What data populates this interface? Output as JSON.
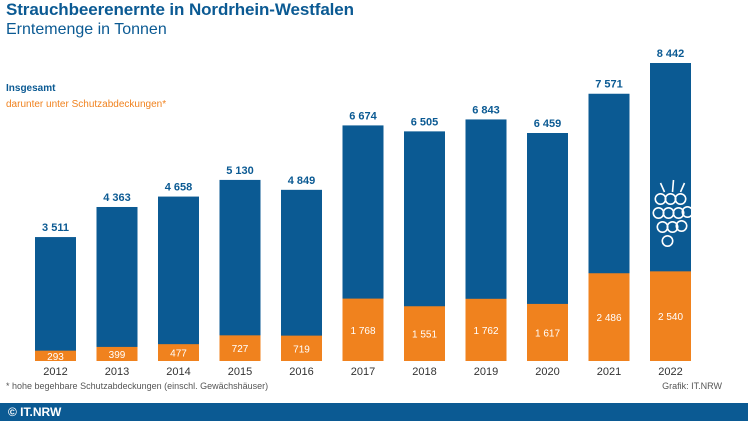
{
  "colors": {
    "total": "#0b5a93",
    "covered": "#f0821e",
    "text_blue": "#0b5a93",
    "footer": "#0b5a93"
  },
  "chart_data": {
    "type": "bar",
    "title": "Strauchbeerenernte in Nordrhein-Westfalen",
    "subtitle": "Erntemenge in Tonnen",
    "categories": [
      "2012",
      "2013",
      "2014",
      "2015",
      "2016",
      "2017",
      "2018",
      "2019",
      "2020",
      "2021",
      "2022"
    ],
    "series": [
      {
        "name": "Insgesamt",
        "values": [
          3511,
          4363,
          4658,
          5130,
          4849,
          6674,
          6505,
          6843,
          6459,
          7571,
          8442
        ],
        "labels": [
          "3 511",
          "4 363",
          "4 658",
          "5 130",
          "4 849",
          "6 674",
          "6 505",
          "6 843",
          "6 459",
          "7 571",
          "8 442"
        ]
      },
      {
        "name": "darunter unter Schutzabdeckungen*",
        "values": [
          293,
          399,
          477,
          727,
          719,
          1768,
          1551,
          1762,
          1617,
          2486,
          2540
        ],
        "labels": [
          "293",
          "399",
          "477",
          "727",
          "719",
          "1 768",
          "1 551",
          "1 762",
          "1 617",
          "2 486",
          "2 540"
        ]
      }
    ],
    "ylim": [
      0,
      8442
    ],
    "xlabel": "",
    "ylabel": "",
    "grid": false,
    "footnote": "* hohe begehbare Schutzabdeckungen (einschl. Gewächshäuser)",
    "source": "Grafik: IT.NRW"
  },
  "decoration": {
    "icon": "berry-icon"
  },
  "footer": {
    "text": "© IT.NRW"
  }
}
